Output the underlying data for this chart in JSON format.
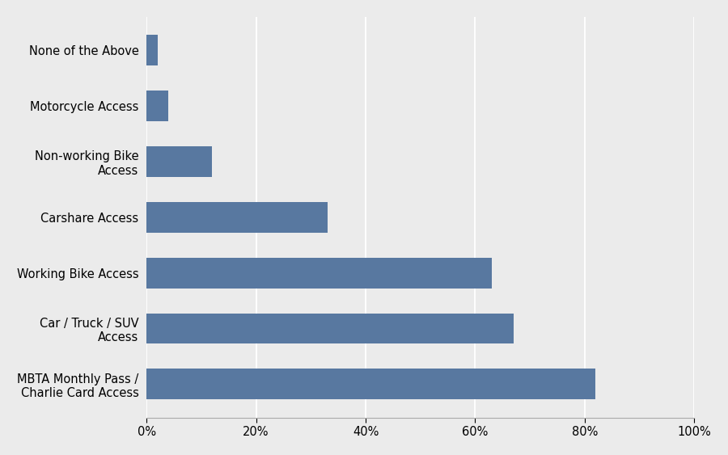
{
  "categories": [
    "None of the Above",
    "Motorcycle Access",
    "Non-working Bike\nAccess",
    "Carshare Access",
    "Working Bike Access",
    "Car / Truck / SUV\nAccess",
    "MBTA Monthly Pass /\nCharlie Card Access"
  ],
  "values": [
    0.02,
    0.04,
    0.12,
    0.33,
    0.63,
    0.67,
    0.82
  ],
  "bar_color": "#5878a0",
  "background_color": "#ebebeb",
  "xlim": [
    0,
    1.0
  ],
  "xticks": [
    0.0,
    0.2,
    0.4,
    0.6,
    0.8,
    1.0
  ],
  "xticklabels": [
    "0%",
    "20%",
    "40%",
    "60%",
    "80%",
    "100%"
  ],
  "bar_height": 0.55,
  "figsize": [
    9.0,
    5.63
  ],
  "dpi": 100
}
